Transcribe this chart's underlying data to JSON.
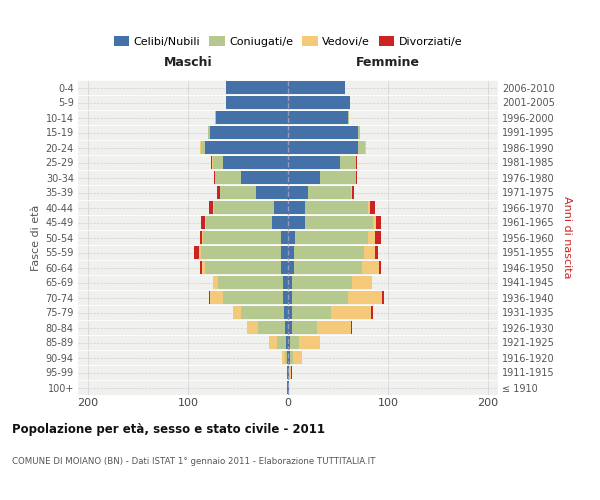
{
  "age_groups": [
    "100+",
    "95-99",
    "90-94",
    "85-89",
    "80-84",
    "75-79",
    "70-74",
    "65-69",
    "60-64",
    "55-59",
    "50-54",
    "45-49",
    "40-44",
    "35-39",
    "30-34",
    "25-29",
    "20-24",
    "15-19",
    "10-14",
    "5-9",
    "0-4"
  ],
  "birth_years": [
    "≤ 1910",
    "1911-1915",
    "1916-1920",
    "1921-1925",
    "1926-1930",
    "1931-1935",
    "1936-1940",
    "1941-1945",
    "1946-1950",
    "1951-1955",
    "1956-1960",
    "1961-1965",
    "1966-1970",
    "1971-1975",
    "1976-1980",
    "1981-1985",
    "1986-1990",
    "1991-1995",
    "1996-2000",
    "2001-2005",
    "2006-2010"
  ],
  "maschi": {
    "celibi": [
      1,
      1,
      1,
      2,
      3,
      4,
      5,
      5,
      7,
      7,
      7,
      16,
      14,
      32,
      47,
      65,
      83,
      78,
      72,
      62,
      62
    ],
    "coniugati": [
      0,
      0,
      2,
      9,
      27,
      43,
      60,
      65,
      76,
      80,
      78,
      66,
      60,
      36,
      26,
      10,
      4,
      2,
      1,
      0,
      0
    ],
    "vedovi": [
      0,
      0,
      3,
      8,
      11,
      8,
      13,
      5,
      3,
      2,
      1,
      1,
      1,
      0,
      0,
      1,
      1,
      0,
      0,
      0,
      0
    ],
    "divorziati": [
      0,
      0,
      0,
      0,
      0,
      0,
      1,
      0,
      2,
      5,
      2,
      4,
      4,
      3,
      1,
      1,
      0,
      0,
      0,
      0,
      0
    ]
  },
  "femmine": {
    "nubili": [
      1,
      1,
      2,
      2,
      4,
      4,
      4,
      4,
      6,
      6,
      7,
      17,
      17,
      20,
      32,
      52,
      70,
      70,
      60,
      62,
      57
    ],
    "coniugate": [
      0,
      0,
      3,
      9,
      25,
      39,
      56,
      60,
      68,
      70,
      73,
      68,
      63,
      43,
      36,
      16,
      7,
      2,
      1,
      0,
      0
    ],
    "vedove": [
      0,
      2,
      9,
      21,
      34,
      40,
      34,
      20,
      17,
      11,
      7,
      3,
      2,
      1,
      0,
      0,
      1,
      0,
      0,
      0,
      0
    ],
    "divorziate": [
      0,
      1,
      0,
      0,
      1,
      2,
      2,
      0,
      2,
      3,
      6,
      5,
      5,
      2,
      1,
      1,
      0,
      0,
      0,
      0,
      0
    ]
  },
  "colors": {
    "celibi": "#4472a8",
    "coniugati": "#b5c98e",
    "vedovi": "#f5c97a",
    "divorziati": "#cc2222"
  },
  "xlim": [
    -210,
    210
  ],
  "xticks": [
    -200,
    -100,
    0,
    100,
    200
  ],
  "xticklabels": [
    "200",
    "100",
    "0",
    "100",
    "200"
  ],
  "title": "Popolazione per età, sesso e stato civile - 2011",
  "subtitle": "COMUNE DI MOIANO (BN) - Dati ISTAT 1° gennaio 2011 - Elaborazione TUTTITALIA.IT",
  "ylabel_left": "Fasce di età",
  "ylabel_right": "Anni di nascita",
  "maschi_label": "Maschi",
  "femmine_label": "Femmine",
  "legend_labels": [
    "Celibi/Nubili",
    "Coniugati/e",
    "Vedovi/e",
    "Divorziati/e"
  ],
  "bg_color": "#ffffff",
  "plot_bg_color": "#f0f0ee",
  "grid_color": "#d0d0d0"
}
